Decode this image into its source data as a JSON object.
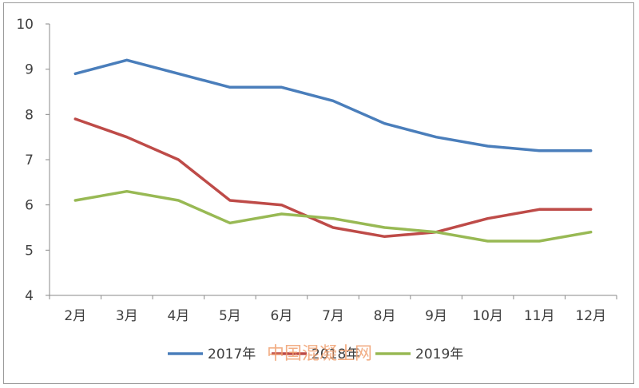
{
  "chart_data": {
    "type": "line",
    "title": "",
    "xlabel": "",
    "ylabel": "",
    "ylim": [
      4,
      10
    ],
    "yticks": [
      "4",
      "5",
      "6",
      "7",
      "8",
      "9",
      "10"
    ],
    "categories": [
      "2月",
      "3月",
      "4月",
      "5月",
      "6月",
      "7月",
      "8月",
      "9月",
      "10月",
      "11月",
      "12月"
    ],
    "grid": false,
    "legend_position": "bottom",
    "series": [
      {
        "name": "2017年",
        "color": "#4a7ebb",
        "values": [
          8.9,
          9.2,
          8.9,
          8.6,
          8.6,
          8.3,
          7.8,
          7.5,
          7.3,
          7.2,
          7.2
        ]
      },
      {
        "name": "2018年",
        "color": "#be4b48",
        "values": [
          7.9,
          7.5,
          7.0,
          6.1,
          6.0,
          5.5,
          5.3,
          5.4,
          5.7,
          5.9,
          5.9
        ]
      },
      {
        "name": "2019年",
        "color": "#98b954",
        "values": [
          6.1,
          6.3,
          6.1,
          5.6,
          5.8,
          5.7,
          5.5,
          5.4,
          5.2,
          5.2,
          5.4
        ]
      }
    ]
  },
  "watermark": {
    "text": "中国混凝土网",
    "color": "#f0a070"
  }
}
